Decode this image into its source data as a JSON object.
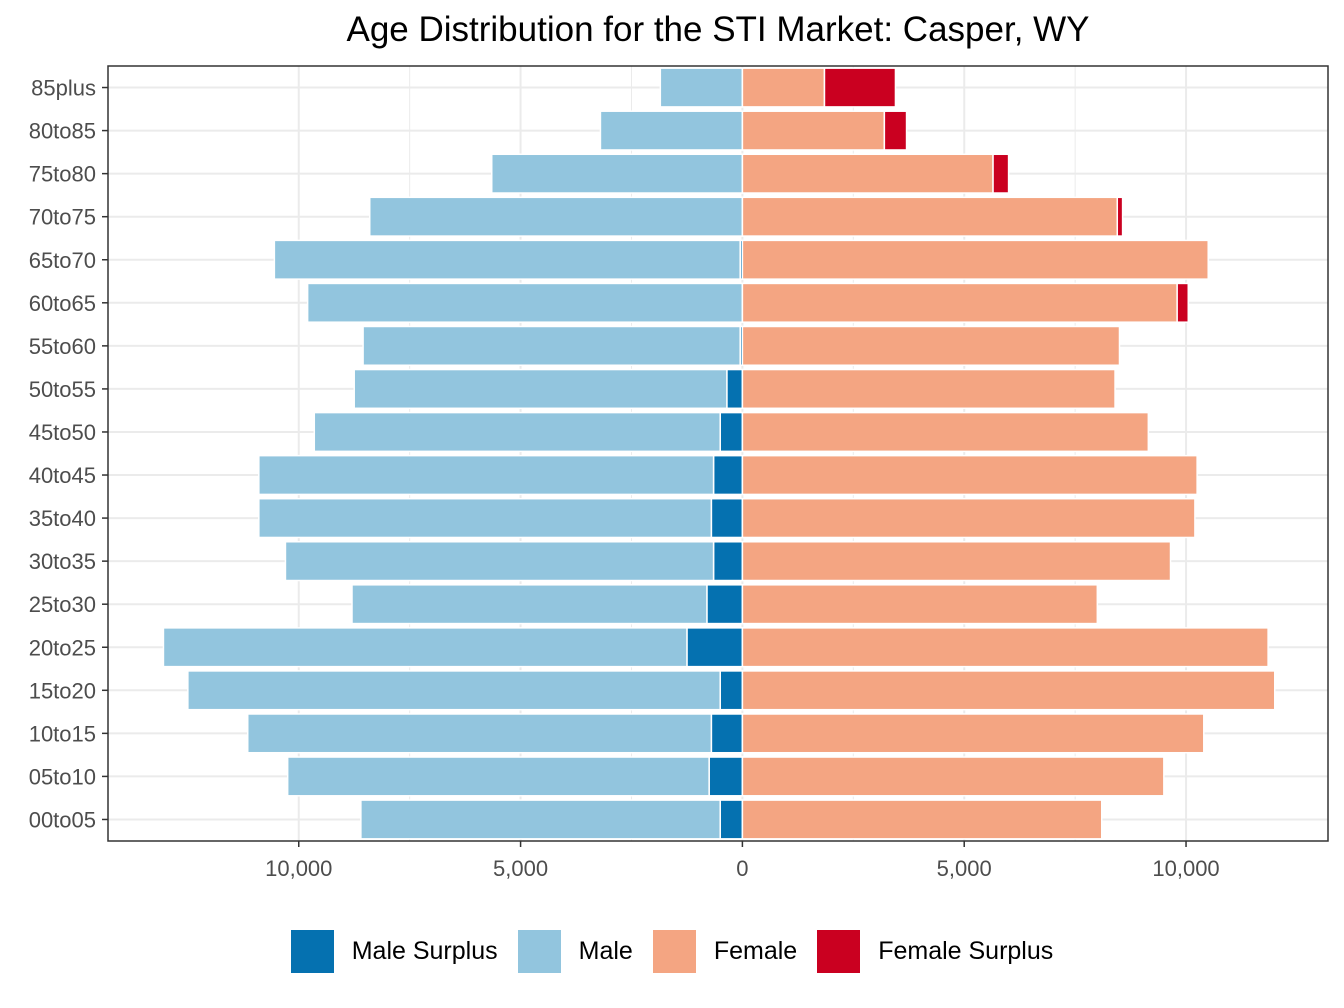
{
  "chart_data": {
    "type": "bar",
    "orientation": "horizontal",
    "stacked": true,
    "title": "Age Distribution for the STI Market: Casper, WY",
    "xlabel": "",
    "ylabel": "",
    "xlim": [
      -14300,
      13200
    ],
    "x_ticks": [
      -10000,
      -5000,
      0,
      5000,
      10000
    ],
    "x_tick_labels": [
      "10,000",
      "5,000",
      "0",
      "5,000",
      "10,000"
    ],
    "grid": true,
    "legend_position": "bottom",
    "categories": [
      "00to05",
      "05to10",
      "10to15",
      "15to20",
      "20to25",
      "25to30",
      "30to35",
      "35to40",
      "40to45",
      "45to50",
      "50to55",
      "55to60",
      "60to65",
      "65to70",
      "70to75",
      "75to80",
      "80to85",
      "85plus"
    ],
    "series": [
      {
        "name": "Male Surplus",
        "color": "#0571b0",
        "values": [
          -500,
          -750,
          -700,
          -500,
          -1250,
          -800,
          -650,
          -700,
          -650,
          -500,
          -350,
          -50,
          0,
          -50,
          0,
          0,
          0,
          0
        ]
      },
      {
        "name": "Male",
        "color": "#92c5de",
        "values": [
          -8100,
          -9500,
          -10450,
          -12000,
          -11800,
          -8000,
          -9650,
          -10200,
          -10250,
          -9150,
          -8400,
          -8500,
          -9800,
          -10500,
          -8400,
          -5650,
          -3200,
          -1850
        ]
      },
      {
        "name": "Female",
        "color": "#f4a582",
        "values": [
          8100,
          9500,
          10400,
          12000,
          11850,
          8000,
          9650,
          10200,
          10250,
          9150,
          8400,
          8500,
          9800,
          10500,
          8450,
          5650,
          3200,
          1850
        ]
      },
      {
        "name": "Female Surplus",
        "color": "#ca0020",
        "values": [
          0,
          0,
          0,
          0,
          0,
          0,
          0,
          0,
          0,
          0,
          0,
          0,
          250,
          0,
          120,
          350,
          500,
          1600
        ]
      }
    ]
  }
}
